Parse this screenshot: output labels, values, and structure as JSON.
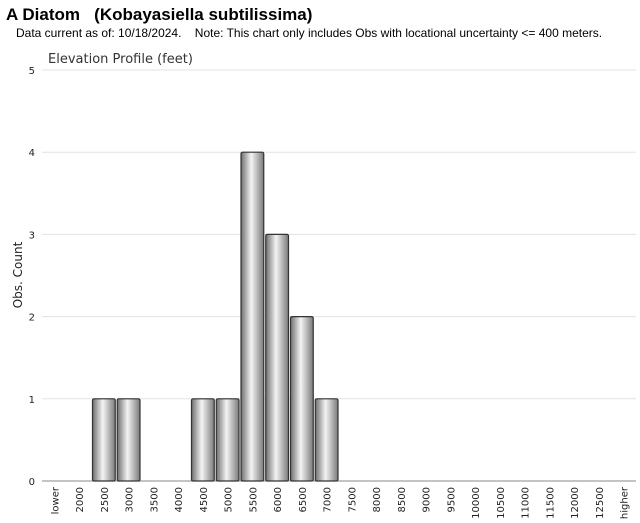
{
  "header": {
    "title": "A Diatom   (Kobayasiella subtilissima)",
    "subtitle": "Data current as of: 10/18/2024.    Note: This chart only includes Obs with locational uncertainty <= 400 meters."
  },
  "chart_data": {
    "type": "bar",
    "title": "Elevation Profile (feet)",
    "xlabel": "",
    "ylabel": "Obs. Count",
    "ylim": [
      0,
      5
    ],
    "yticks": [
      0,
      1,
      2,
      3,
      4,
      5
    ],
    "grid": true,
    "categories": [
      "lower",
      "2000",
      "2500",
      "3000",
      "3500",
      "4000",
      "4500",
      "5000",
      "5500",
      "6000",
      "6500",
      "7000",
      "7500",
      "8000",
      "8500",
      "9000",
      "9500",
      "10000",
      "10500",
      "11000",
      "11500",
      "12000",
      "12500",
      "higher"
    ],
    "values": [
      0,
      0,
      1,
      1,
      0,
      0,
      1,
      1,
      4,
      3,
      2,
      1,
      0,
      0,
      0,
      0,
      0,
      0,
      0,
      0,
      0,
      0,
      0,
      0
    ],
    "bar_color": "#b0b0b0",
    "bar_edge_color": "#333333"
  }
}
